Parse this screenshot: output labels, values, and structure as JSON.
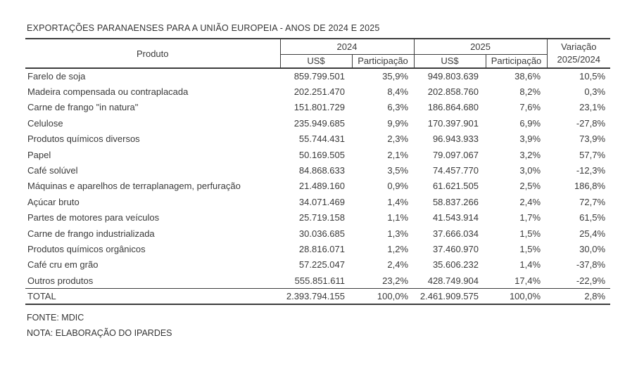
{
  "title": "EXPORTAÇÕES PARANAENSES PARA A UNIÃO EUROPEIA - ANOS DE 2024 E 2025",
  "colors": {
    "background": "#ffffff",
    "text": "#3a3a3a",
    "border": "#3c3c3c"
  },
  "table": {
    "headers": {
      "product": "Produto",
      "group_2024": "2024",
      "group_2025": "2025",
      "usd_2024": "US$",
      "share_2024": "Participação",
      "usd_2025": "US$",
      "share_2025": "Participação",
      "variation_line1": "Variação",
      "variation_line2": "2025/2024"
    },
    "rows": [
      {
        "product": "Farelo de soja",
        "usd_2024": "859.799.501",
        "share_2024": "35,9%",
        "usd_2025": "949.803.639",
        "share_2025": "38,6%",
        "variation": "10,5%",
        "is_total": false
      },
      {
        "product": "Madeira compensada ou contraplacada",
        "usd_2024": "202.251.470",
        "share_2024": "8,4%",
        "usd_2025": "202.858.760",
        "share_2025": "8,2%",
        "variation": "0,3%",
        "is_total": false
      },
      {
        "product": "Carne de frango \"in natura\"",
        "usd_2024": "151.801.729",
        "share_2024": "6,3%",
        "usd_2025": "186.864.680",
        "share_2025": "7,6%",
        "variation": "23,1%",
        "is_total": false
      },
      {
        "product": "Celulose",
        "usd_2024": "235.949.685",
        "share_2024": "9,9%",
        "usd_2025": "170.397.901",
        "share_2025": "6,9%",
        "variation": "-27,8%",
        "is_total": false
      },
      {
        "product": "Produtos químicos diversos",
        "usd_2024": "55.744.431",
        "share_2024": "2,3%",
        "usd_2025": "96.943.933",
        "share_2025": "3,9%",
        "variation": "73,9%",
        "is_total": false
      },
      {
        "product": "Papel",
        "usd_2024": "50.169.505",
        "share_2024": "2,1%",
        "usd_2025": "79.097.067",
        "share_2025": "3,2%",
        "variation": "57,7%",
        "is_total": false
      },
      {
        "product": "Café solúvel",
        "usd_2024": "84.868.633",
        "share_2024": "3,5%",
        "usd_2025": "74.457.770",
        "share_2025": "3,0%",
        "variation": "-12,3%",
        "is_total": false
      },
      {
        "product": "Máquinas e aparelhos de terraplanagem, perfuração",
        "usd_2024": "21.489.160",
        "share_2024": "0,9%",
        "usd_2025": "61.621.505",
        "share_2025": "2,5%",
        "variation": "186,8%",
        "is_total": false
      },
      {
        "product": "Açúcar bruto",
        "usd_2024": "34.071.469",
        "share_2024": "1,4%",
        "usd_2025": "58.837.266",
        "share_2025": "2,4%",
        "variation": "72,7%",
        "is_total": false
      },
      {
        "product": "Partes de motores para veículos",
        "usd_2024": "25.719.158",
        "share_2024": "1,1%",
        "usd_2025": "41.543.914",
        "share_2025": "1,7%",
        "variation": "61,5%",
        "is_total": false
      },
      {
        "product": "Carne de frango industrializada",
        "usd_2024": "30.036.685",
        "share_2024": "1,3%",
        "usd_2025": "37.666.034",
        "share_2025": "1,5%",
        "variation": "25,4%",
        "is_total": false
      },
      {
        "product": "Produtos químicos orgânicos",
        "usd_2024": "28.816.071",
        "share_2024": "1,2%",
        "usd_2025": "37.460.970",
        "share_2025": "1,5%",
        "variation": "30,0%",
        "is_total": false
      },
      {
        "product": "Café cru em grão",
        "usd_2024": "57.225.047",
        "share_2024": "2,4%",
        "usd_2025": "35.606.232",
        "share_2025": "1,4%",
        "variation": "-37,8%",
        "is_total": false
      },
      {
        "product": "Outros produtos",
        "usd_2024": "555.851.611",
        "share_2024": "23,2%",
        "usd_2025": "428.749.904",
        "share_2025": "17,4%",
        "variation": "-22,9%",
        "is_total": false
      },
      {
        "product": "TOTAL",
        "usd_2024": "2.393.794.155",
        "share_2024": "100,0%",
        "usd_2025": "2.461.909.575",
        "share_2025": "100,0%",
        "variation": "2,8%",
        "is_total": true
      }
    ]
  },
  "footer": {
    "source": "FONTE: MDIC",
    "note": "NOTA: ELABORAÇÃO DO IPARDES"
  }
}
